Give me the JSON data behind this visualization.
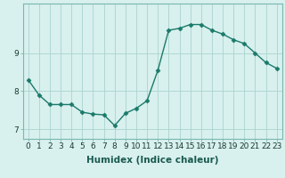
{
  "x": [
    0,
    1,
    2,
    3,
    4,
    5,
    6,
    7,
    8,
    9,
    10,
    11,
    12,
    13,
    14,
    15,
    16,
    17,
    18,
    19,
    20,
    21,
    22,
    23
  ],
  "y": [
    8.3,
    7.9,
    7.65,
    7.65,
    7.65,
    7.45,
    7.4,
    7.38,
    7.1,
    7.42,
    7.55,
    7.75,
    8.55,
    9.6,
    9.65,
    9.75,
    9.75,
    9.6,
    9.5,
    9.35,
    9.25,
    9.0,
    8.75,
    8.6
  ],
  "line_color": "#1a7a6a",
  "marker": "D",
  "marker_size": 2.5,
  "bg_color": "#d8f0ee",
  "grid_color": "#aad4ce",
  "xlabel": "Humidex (Indice chaleur)",
  "xlim": [
    -0.5,
    23.5
  ],
  "ylim": [
    6.75,
    10.3
  ],
  "yticks": [
    7,
    8,
    9
  ],
  "xtick_labels": [
    "0",
    "1",
    "2",
    "3",
    "4",
    "5",
    "6",
    "7",
    "8",
    "9",
    "10",
    "11",
    "12",
    "13",
    "14",
    "15",
    "16",
    "17",
    "18",
    "19",
    "20",
    "21",
    "22",
    "23"
  ],
  "font_size": 6.5,
  "xlabel_fontsize": 7.5
}
